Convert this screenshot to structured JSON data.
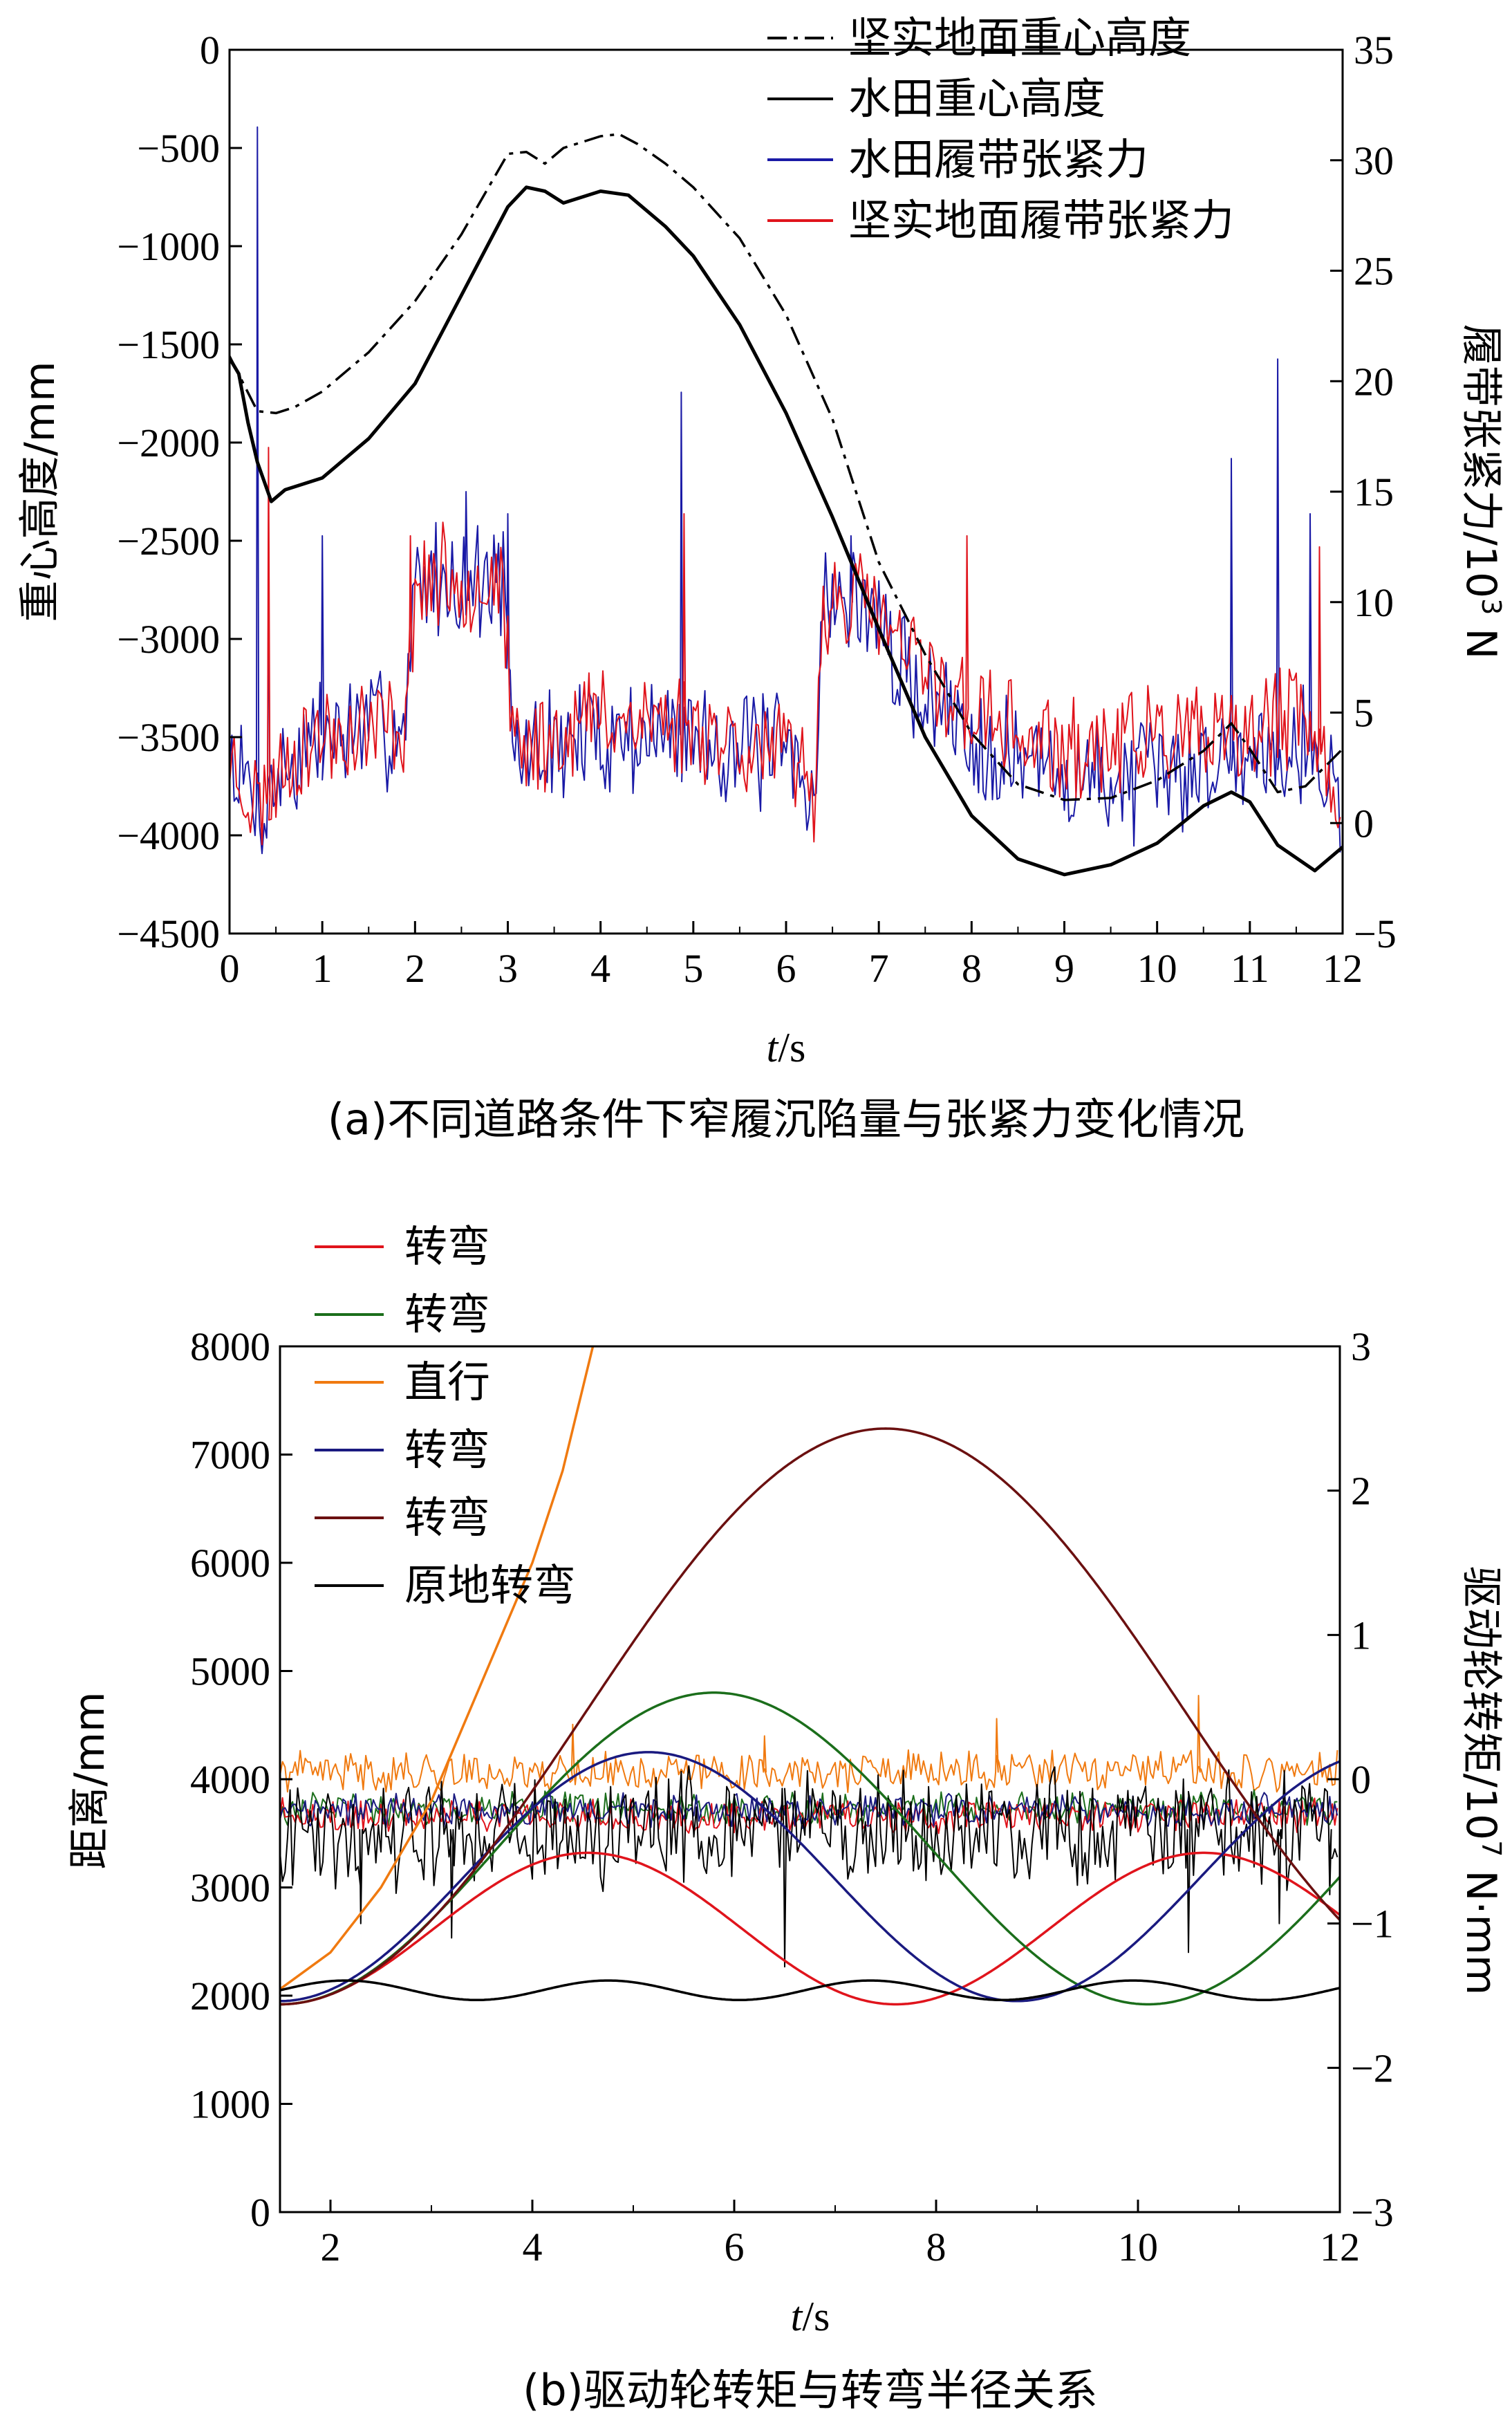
{
  "chart_data": [
    {
      "id": "a",
      "type": "line",
      "caption": "(a)不同道路条件下窄履沉陷量与张紧力变化情况",
      "xlabel_italic": "t",
      "xlabel_unit": "/s",
      "ylabel_left": "重心高度/mm",
      "ylabel_right_prefix": "履带张紧力/10",
      "ylabel_right_exp": "3",
      "ylabel_right_suffix": " N",
      "xlim": [
        0,
        12
      ],
      "ylim_left": [
        -4500,
        0
      ],
      "ylim_right": [
        -5,
        35
      ],
      "x_ticks": [
        0,
        1,
        2,
        3,
        4,
        5,
        6,
        7,
        8,
        9,
        10,
        11,
        12
      ],
      "y_left_ticks": [
        0,
        -500,
        -1000,
        -1500,
        -2000,
        -2500,
        -3000,
        -3500,
        -4000,
        -4500
      ],
      "y_right_ticks": [
        35,
        30,
        25,
        20,
        15,
        10,
        5,
        0,
        -5
      ],
      "legend": [
        {
          "label": "坚实地面重心高度",
          "color": "#000000",
          "dash": "dashdot"
        },
        {
          "label": "水田重心高度",
          "color": "#000000",
          "dash": "solid"
        },
        {
          "label": "水田履带张紧力",
          "color": "#1a1aa6",
          "dash": "solid"
        },
        {
          "label": "坚实地面履带张紧力",
          "color": "#e0141c",
          "dash": "solid"
        }
      ],
      "series": [
        {
          "name": "坚实地面重心高度",
          "axis": "left",
          "style": "dashdot",
          "color": "#000000",
          "points": [
            [
              0,
              -1560
            ],
            [
              0.15,
              -1700
            ],
            [
              0.3,
              -1840
            ],
            [
              0.5,
              -1850
            ],
            [
              0.7,
              -1820
            ],
            [
              1.0,
              -1740
            ],
            [
              1.5,
              -1540
            ],
            [
              2.0,
              -1280
            ],
            [
              2.5,
              -940
            ],
            [
              3.0,
              -530
            ],
            [
              3.2,
              -520
            ],
            [
              3.4,
              -580
            ],
            [
              3.6,
              -500
            ],
            [
              4.0,
              -440
            ],
            [
              4.2,
              -430
            ],
            [
              4.4,
              -480
            ],
            [
              4.7,
              -580
            ],
            [
              5.0,
              -700
            ],
            [
              5.5,
              -960
            ],
            [
              6.0,
              -1350
            ],
            [
              6.5,
              -1880
            ],
            [
              7.0,
              -2610
            ],
            [
              7.5,
              -3080
            ],
            [
              8.0,
              -3480
            ],
            [
              8.5,
              -3740
            ],
            [
              9.0,
              -3820
            ],
            [
              9.5,
              -3810
            ],
            [
              10.0,
              -3720
            ],
            [
              10.5,
              -3570
            ],
            [
              10.8,
              -3430
            ],
            [
              11.0,
              -3560
            ],
            [
              11.3,
              -3780
            ],
            [
              11.6,
              -3750
            ],
            [
              12.0,
              -3560
            ]
          ]
        },
        {
          "name": "水田重心高度",
          "axis": "left",
          "style": "solid",
          "color": "#000000",
          "points": [
            [
              0,
              -1570
            ],
            [
              0.1,
              -1650
            ],
            [
              0.2,
              -1900
            ],
            [
              0.3,
              -2100
            ],
            [
              0.45,
              -2300
            ],
            [
              0.6,
              -2240
            ],
            [
              1.0,
              -2180
            ],
            [
              1.5,
              -1980
            ],
            [
              2.0,
              -1700
            ],
            [
              2.5,
              -1250
            ],
            [
              3.0,
              -800
            ],
            [
              3.2,
              -700
            ],
            [
              3.4,
              -720
            ],
            [
              3.6,
              -780
            ],
            [
              4.0,
              -720
            ],
            [
              4.3,
              -740
            ],
            [
              4.7,
              -900
            ],
            [
              5.0,
              -1050
            ],
            [
              5.5,
              -1400
            ],
            [
              6.0,
              -1850
            ],
            [
              6.5,
              -2380
            ],
            [
              7.0,
              -2950
            ],
            [
              7.5,
              -3500
            ],
            [
              8.0,
              -3900
            ],
            [
              8.5,
              -4120
            ],
            [
              9.0,
              -4200
            ],
            [
              9.5,
              -4150
            ],
            [
              10.0,
              -4040
            ],
            [
              10.5,
              -3850
            ],
            [
              10.8,
              -3780
            ],
            [
              11.0,
              -3830
            ],
            [
              11.3,
              -4050
            ],
            [
              11.7,
              -4180
            ],
            [
              12.0,
              -4060
            ]
          ]
        },
        {
          "name": "水田履带张紧力",
          "axis": "right",
          "style": "noise",
          "color": "#1a1aa6",
          "seed": 7,
          "noise_amp": 2.4,
          "baseline": [
            [
              0,
              3
            ],
            [
              0.28,
              1
            ],
            [
              0.35,
              0.5
            ],
            [
              0.5,
              2
            ],
            [
              1,
              4
            ],
            [
              1.9,
              4.5
            ],
            [
              2,
              11
            ],
            [
              2.95,
              11
            ],
            [
              3.05,
              3
            ],
            [
              3.5,
              3.5
            ],
            [
              4,
              4
            ],
            [
              5,
              4
            ],
            [
              6,
              3
            ],
            [
              6.3,
              1.5
            ],
            [
              6.4,
              10
            ],
            [
              6.9,
              10
            ],
            [
              7.2,
              7
            ],
            [
              8,
              4
            ],
            [
              9,
              2
            ],
            [
              10,
              2
            ],
            [
              10.8,
              3
            ],
            [
              11.5,
              4
            ],
            [
              11.9,
              2
            ],
            [
              12,
              1
            ]
          ],
          "spikes": [
            [
              0.3,
              31.5
            ],
            [
              0.42,
              12
            ],
            [
              1.0,
              13
            ],
            [
              2.55,
              15
            ],
            [
              3.0,
              14
            ],
            [
              4.87,
              19.5
            ],
            [
              6.7,
              13
            ],
            [
              10.8,
              16.5
            ],
            [
              11.3,
              21
            ],
            [
              11.65,
              14
            ]
          ]
        },
        {
          "name": "坚实地面履带张紧力",
          "axis": "right",
          "style": "noise",
          "color": "#e0141c",
          "seed": 23,
          "noise_amp": 2.1,
          "baseline": [
            [
              0,
              3
            ],
            [
              0.25,
              1
            ],
            [
              0.4,
              1
            ],
            [
              0.6,
              3
            ],
            [
              1,
              4
            ],
            [
              1.9,
              4.5
            ],
            [
              2,
              11
            ],
            [
              2.95,
              11
            ],
            [
              3.05,
              3
            ],
            [
              3.5,
              4
            ],
            [
              4,
              5
            ],
            [
              5,
              4.5
            ],
            [
              6,
              3
            ],
            [
              6.3,
              1.5
            ],
            [
              6.4,
              10
            ],
            [
              6.9,
              10
            ],
            [
              7.2,
              8
            ],
            [
              8,
              5
            ],
            [
              9,
              3
            ],
            [
              10,
              4
            ],
            [
              10.8,
              3.5
            ],
            [
              11.5,
              5
            ],
            [
              11.9,
              2
            ],
            [
              12,
              1
            ]
          ],
          "spikes": [
            [
              0.42,
              17
            ],
            [
              1.95,
              13
            ],
            [
              4.9,
              14
            ],
            [
              7.95,
              13
            ],
            [
              11.75,
              12.5
            ]
          ]
        }
      ]
    },
    {
      "id": "b",
      "type": "line",
      "caption": "(b)驱动轮转矩与转弯半径关系",
      "xlabel_italic": "t",
      "xlabel_unit": "/s",
      "ylabel_left": "距离/mm",
      "ylabel_right_prefix": "驱动轮转矩/10",
      "ylabel_right_exp": "7",
      "ylabel_right_suffix": " N·mm",
      "xlim": [
        1.5,
        12
      ],
      "ylim_left": [
        0,
        8000
      ],
      "ylim_right": [
        -3,
        3
      ],
      "x_ticks": [
        2,
        4,
        6,
        8,
        10,
        12
      ],
      "y_left_ticks": [
        8000,
        7000,
        6000,
        5000,
        4000,
        3000,
        2000,
        1000,
        0
      ],
      "y_right_ticks": [
        3,
        2,
        1,
        0,
        -1,
        -2,
        -3
      ],
      "legend": [
        {
          "label": "转弯",
          "color": "#e0141c"
        },
        {
          "label": "转弯",
          "color": "#1b6e1b"
        },
        {
          "label": "直行",
          "color": "#f07a10"
        },
        {
          "label": "转弯",
          "color": "#1a1a80"
        },
        {
          "label": "转弯",
          "color": "#6b1010"
        },
        {
          "label": "原地转弯",
          "color": "#000000"
        }
      ],
      "series": [
        {
          "name": "转弯",
          "axis": "left",
          "style": "cos",
          "color": "#e0141c",
          "center": 2620,
          "amp": 700,
          "period": 6.1,
          "phase_t": 1.5,
          "t_end": 12
        },
        {
          "name": "转弯",
          "axis": "left",
          "style": "cos",
          "color": "#1b6e1b",
          "center": 3360,
          "amp": 1440,
          "period": 8.6,
          "phase_t": 1.5,
          "t_end": 12
        },
        {
          "name": "转弯",
          "axis": "left",
          "style": "cos",
          "color": "#1a1a80",
          "center": 3100,
          "amp": 1150,
          "period": 7.3,
          "phase_t": 1.5,
          "t_end": 12
        },
        {
          "name": "转弯",
          "axis": "left",
          "style": "cos",
          "color": "#6b1010",
          "center": 4580,
          "amp": 2660,
          "period": 12.0,
          "phase_t": 1.5,
          "t_end": 12
        },
        {
          "name": "直行",
          "axis": "left",
          "style": "poly",
          "color": "#f07a10",
          "points": [
            [
              1.5,
              2060
            ],
            [
              2,
              2400
            ],
            [
              2.5,
              3000
            ],
            [
              3,
              3800
            ],
            [
              3.5,
              4900
            ],
            [
              4,
              6000
            ],
            [
              4.3,
              6850
            ],
            [
              4.6,
              8000
            ]
          ]
        },
        {
          "name": "原地转弯",
          "axis": "left",
          "style": "cos",
          "color": "#000000",
          "center": 2050,
          "amp": 90,
          "period": 2.6,
          "phase_t": 1.5,
          "t_end": 12,
          "invert": true
        },
        {
          "name": "直行",
          "axis": "right",
          "style": "noise",
          "color": "#f07a10",
          "seed": 41,
          "noise_amp": 0.12,
          "baseline": [
            [
              1.5,
              0.05
            ],
            [
              12,
              0.05
            ]
          ],
          "spikes": [
            [
              4.4,
              0.38
            ],
            [
              6.3,
              0.3
            ],
            [
              8.6,
              0.42
            ],
            [
              10.6,
              0.58
            ]
          ]
        },
        {
          "name": "转弯",
          "axis": "right",
          "style": "noise",
          "color": "#1b6e1b",
          "seed": 55,
          "noise_amp": 0.1,
          "baseline": [
            [
              1.5,
              -0.2
            ],
            [
              12,
              -0.2
            ]
          ],
          "spikes": []
        },
        {
          "name": "转弯",
          "axis": "right",
          "style": "noise",
          "color": "#e0141c",
          "seed": 63,
          "noise_amp": 0.1,
          "baseline": [
            [
              1.5,
              -0.25
            ],
            [
              12,
              -0.25
            ]
          ],
          "spikes": []
        },
        {
          "name": "转弯",
          "axis": "right",
          "style": "noise",
          "color": "#1a1a80",
          "seed": 77,
          "noise_amp": 0.1,
          "baseline": [
            [
              1.5,
              -0.22
            ],
            [
              12,
              -0.22
            ]
          ],
          "spikes": []
        },
        {
          "name": "原地转弯",
          "axis": "right",
          "style": "noise",
          "color": "#000000",
          "seed": 91,
          "noise_amp": 0.35,
          "baseline": [
            [
              1.5,
              -0.35
            ],
            [
              12,
              -0.35
            ]
          ],
          "spikes": [
            [
              2.3,
              -1.0
            ],
            [
              3.2,
              -1.1
            ],
            [
              6.5,
              -1.3
            ],
            [
              10.5,
              -1.2
            ],
            [
              11.4,
              -1.0
            ],
            [
              11.9,
              -0.8
            ]
          ]
        }
      ]
    }
  ]
}
